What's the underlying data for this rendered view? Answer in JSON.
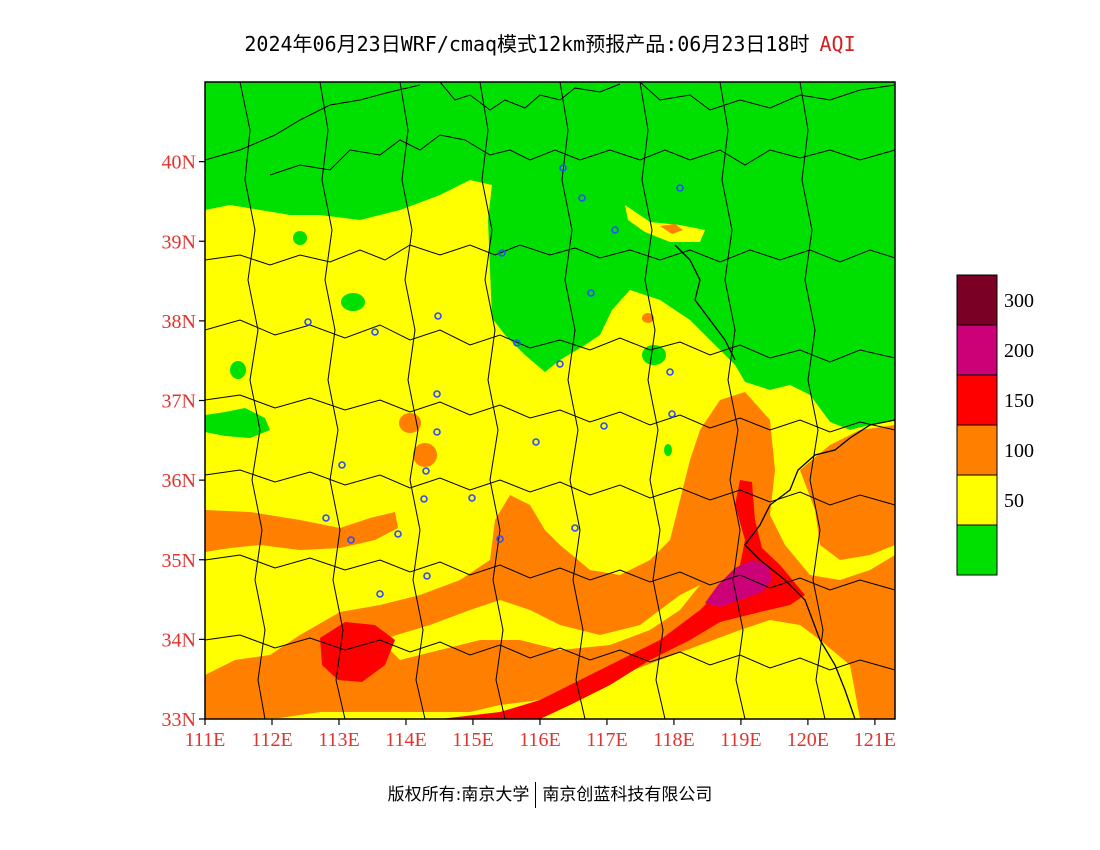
{
  "title": {
    "main": "2024年06月23日WRF/cmaq模式12km预报产品:06月23日18时",
    "variable": "AQI"
  },
  "map": {
    "lon_range": [
      111,
      121.3
    ],
    "lat_range": [
      33,
      41
    ],
    "lat_labels": [
      "33N",
      "34N",
      "35N",
      "36N",
      "37N",
      "38N",
      "39N",
      "40N"
    ],
    "lon_labels": [
      "111E",
      "112E",
      "113E",
      "114E",
      "115E",
      "116E",
      "117E",
      "118E",
      "119E",
      "120E",
      "121E"
    ]
  },
  "legend": {
    "bins": [
      {
        "label": "",
        "color": "#00e000"
      },
      {
        "label": "50",
        "color": "#ffff00"
      },
      {
        "label": "100",
        "color": "#ff8000"
      },
      {
        "label": "150",
        "color": "#ff0000"
      },
      {
        "label": "200",
        "color": "#cc0077"
      },
      {
        "label": "300",
        "color": "#7a0025"
      }
    ]
  },
  "credits": {
    "left": "版权所有:南京大学",
    "right": "南京创蓝科技有限公司"
  }
}
